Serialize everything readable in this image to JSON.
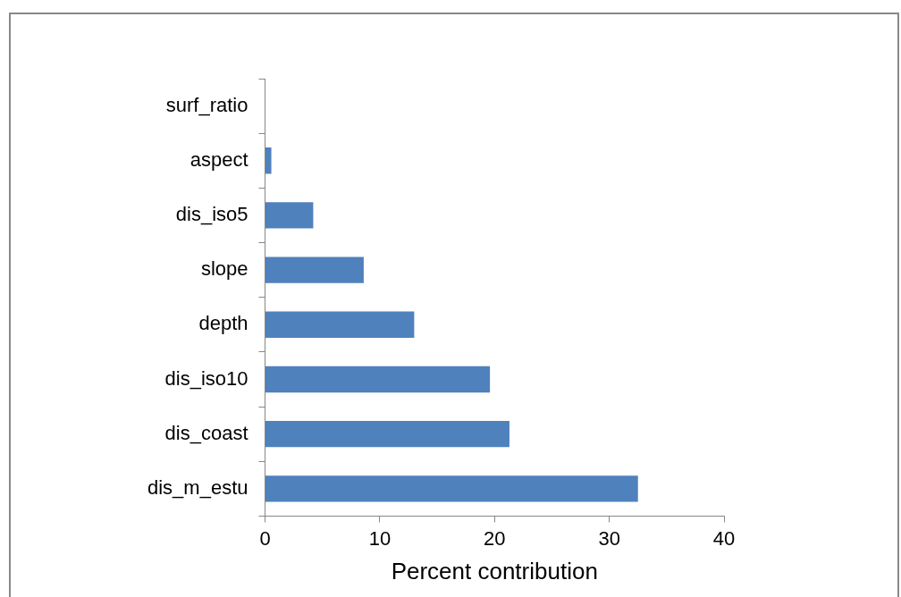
{
  "chart_data": {
    "type": "bar",
    "orientation": "horizontal",
    "xlabel": "Percent contribution",
    "categories": [
      "surf_ratio",
      "aspect",
      "dis_iso5",
      "slope",
      "depth",
      "dis_iso10",
      "dis_coast",
      "dis_m_estu"
    ],
    "values": [
      0,
      0.55,
      4.2,
      8.6,
      13.0,
      19.6,
      21.3,
      32.5
    ],
    "color": "#4f81bd",
    "xlim": [
      0,
      40
    ],
    "xticks": [
      0,
      10,
      20,
      30,
      40
    ],
    "grid": false,
    "legend": false
  }
}
